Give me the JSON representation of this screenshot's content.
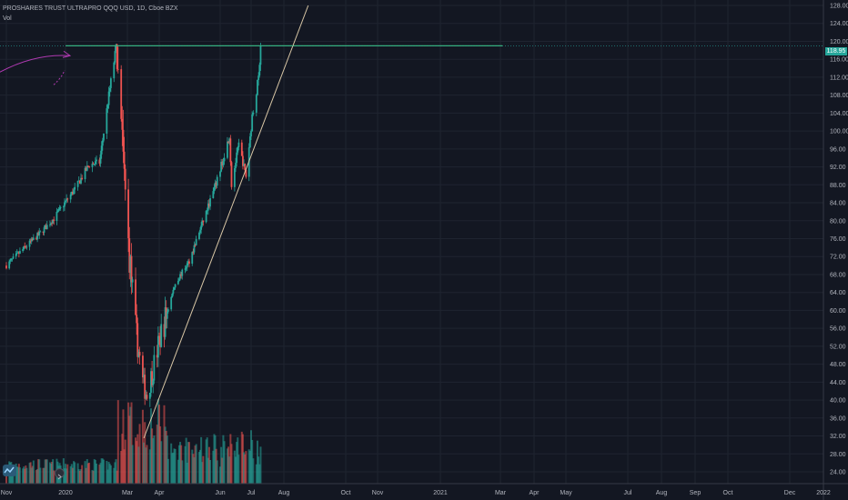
{
  "header": {
    "title": "PROSHARES TRUST ULTRAPRO QQQ USD, 1D, Cboe BZX",
    "volume_label": "Vol"
  },
  "last_price": "118.95",
  "colors": {
    "background": "#131722",
    "grid": "#1f2430",
    "up": "#26a69a",
    "down": "#ef5350",
    "resistance": "#3bb27a",
    "trendline": "#d9c7a6",
    "arrow": "#b03ab2",
    "axis_text": "#b2b5be"
  },
  "icons": {
    "logo": "tradingview-logo-icon",
    "scroll": "go-to-realtime-icon"
  },
  "chart_data": {
    "type": "candlestick",
    "interval": "1D",
    "x_axis": {
      "ticks": [
        "Nov",
        "2020",
        "Mar",
        "Apr",
        "Jun",
        "Jul",
        "Aug",
        "Oct",
        "Nov",
        "2021",
        "Mar",
        "Apr",
        "May",
        "Jul",
        "Aug",
        "Sep",
        "Oct",
        "Dec",
        "2022"
      ]
    },
    "y_axis": {
      "range": [
        24,
        128
      ],
      "ticks": [
        128,
        124,
        120,
        116,
        112,
        108,
        104,
        100,
        96,
        92,
        88,
        84,
        80,
        76,
        72,
        68,
        64,
        60,
        56,
        52,
        48,
        44,
        40,
        36,
        32,
        28,
        24
      ],
      "tick_labels": [
        "128.00",
        "124.00",
        "120.00",
        "116.00",
        "112.00",
        "108.00",
        "104.00",
        "100.00",
        "96.00",
        "92.00",
        "88.00",
        "84.00",
        "80.00",
        "76.00",
        "72.00",
        "68.00",
        "64.00",
        "60.00",
        "56.00",
        "52.00",
        "48.00",
        "44.00",
        "40.00",
        "36.00",
        "32.00",
        "28.00",
        "24.00"
      ]
    },
    "price_path": [
      [
        "2019-11-01",
        70.0
      ],
      [
        "2019-11-20",
        74.0
      ],
      [
        "2019-12-05",
        77.0
      ],
      [
        "2019-12-20",
        80.5
      ],
      [
        "2020-01-10",
        87.0
      ],
      [
        "2020-01-24",
        92.5
      ],
      [
        "2020-02-03",
        93.0
      ],
      [
        "2020-02-12",
        108.0
      ],
      [
        "2020-02-19",
        118.5
      ],
      [
        "2020-02-26",
        93.0
      ],
      [
        "2020-03-02",
        75.0
      ],
      [
        "2020-03-09",
        56.0
      ],
      [
        "2020-03-16",
        44.0
      ],
      [
        "2020-03-20",
        41.0
      ],
      [
        "2020-03-27",
        48.0
      ],
      [
        "2020-04-03",
        55.0
      ],
      [
        "2020-04-17",
        66.0
      ],
      [
        "2020-05-01",
        71.0
      ],
      [
        "2020-05-15",
        80.0
      ],
      [
        "2020-05-29",
        89.0
      ],
      [
        "2020-06-10",
        99.0
      ],
      [
        "2020-06-12",
        88.0
      ],
      [
        "2020-06-19",
        97.0
      ],
      [
        "2020-06-26",
        90.0
      ],
      [
        "2020-07-02",
        103.0
      ],
      [
        "2020-07-08",
        112.0
      ],
      [
        "2020-07-10",
        118.95
      ]
    ],
    "volume_range": [
      0,
      1
    ],
    "series": [
      {
        "values": "candles",
        "last": 118.95
      }
    ],
    "annotations": [
      {
        "type": "horizontal_line",
        "price": 119.0,
        "from": "2020-01-01",
        "to": "2020-09-15"
      },
      {
        "type": "trend_line",
        "points": [
          [
            "2020-03-17",
            31.5
          ],
          [
            "2020-08-25",
            128.0
          ]
        ]
      },
      {
        "type": "arrow",
        "from": [
          "2019-10-20",
          112.5
        ],
        "to": [
          "2020-01-01",
          116.8
        ]
      }
    ]
  }
}
